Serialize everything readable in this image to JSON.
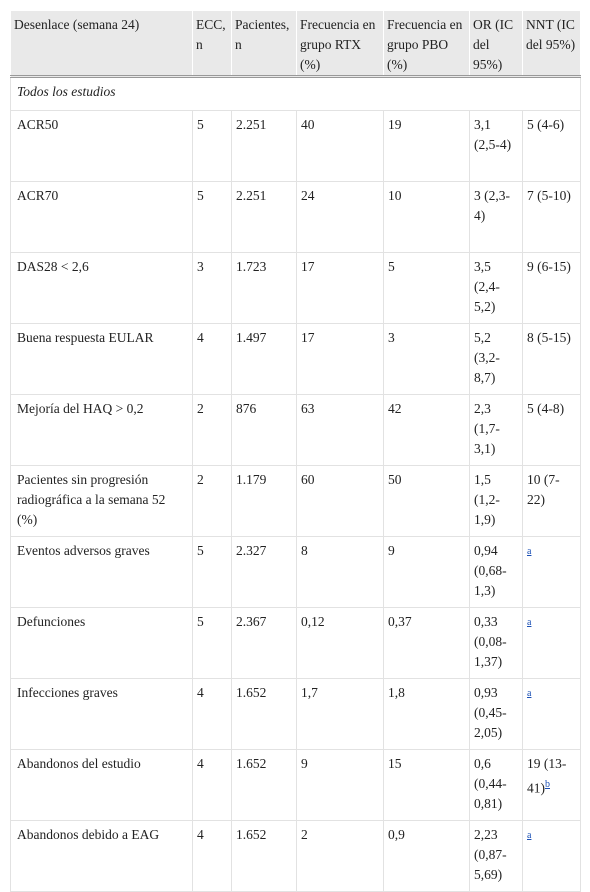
{
  "table": {
    "header": [
      "Desenlace (semana 24)",
      "ECC, n",
      "Pacientes, n",
      "Frecuencia en grupo RTX (%)",
      "Frecuencia en grupo PBO (%)",
      "OR (IC del 95%)",
      "NNT (IC del 95%)"
    ],
    "section": "Todos los estudios",
    "rows": [
      [
        "ACR50",
        "5",
        "2.251",
        "40",
        "19",
        "3,1 (2,5-4)",
        "5 (4-6)"
      ],
      [
        "ACR70",
        "5",
        "2.251",
        "24",
        "10",
        "3 (2,3-4)",
        "7 (5-10)"
      ],
      [
        "DAS28 < 2,6",
        "3",
        "1.723",
        "17",
        "5",
        "3,5 (2,4-5,2)",
        "9 (6-15)"
      ],
      [
        "Buena respuesta EULAR",
        "4",
        "1.497",
        "17",
        "3",
        "5,2 (3,2-8,7)",
        "8 (5-15)"
      ],
      [
        "Mejoría del HAQ > 0,2",
        "2",
        "876",
        "63",
        "42",
        "2,3 (1,7-3,1)",
        "5 (4-8)"
      ],
      [
        "Pacientes sin progresión radiográfica a la semana 52 (%)",
        "2",
        "1.179",
        "60",
        "50",
        "1,5 (1,2-1,9)",
        "10 (7-22)"
      ],
      [
        "Eventos adversos graves",
        "5",
        "2.327",
        "8",
        "9",
        "0,94 (0,68-1,3)",
        {
          "note": "a"
        }
      ],
      [
        "Defunciones",
        "5",
        "2.367",
        "0,12",
        "0,37",
        "0,33 (0,08-1,37)",
        {
          "note": "a"
        }
      ],
      [
        "Infecciones graves",
        "4",
        "1.652",
        "1,7",
        "1,8",
        "0,93 (0,45-2,05)",
        {
          "note": "a"
        }
      ],
      [
        "Abandonos del estudio",
        "4",
        "1.652",
        "9",
        "15",
        "0,6 (0,44-0,81)",
        {
          "text": "19 (13-41)",
          "note": "b"
        }
      ],
      [
        "Abandonos debido a EAG",
        "4",
        "1.652",
        "2",
        "0,9",
        "2,23 (0,87-5,69)",
        {
          "note": "a"
        }
      ]
    ]
  }
}
